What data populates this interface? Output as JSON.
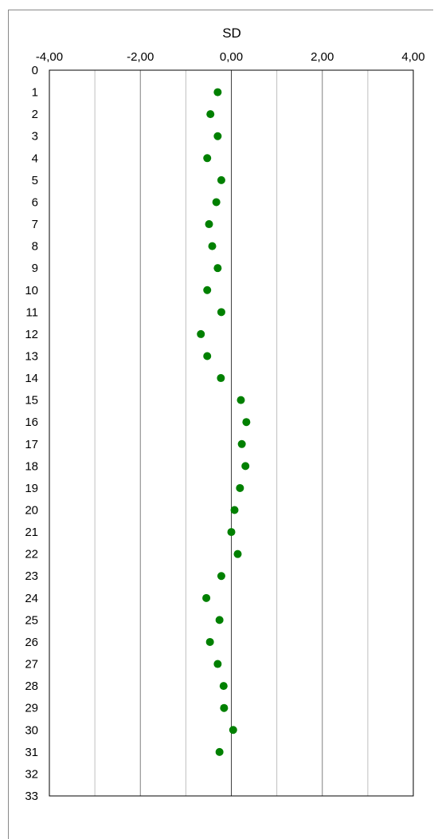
{
  "chart_data": {
    "type": "scatter",
    "title": "SD",
    "xlabel": "",
    "ylabel": "",
    "xlim": [
      -4,
      4
    ],
    "ylim": [
      0,
      33
    ],
    "x_axis_position": "top",
    "y_axis_inverted": true,
    "grid": "vertical",
    "x_ticks": [
      "-4,00",
      "-2,00",
      "0,00",
      "2,00",
      "4,00"
    ],
    "y_ticks": [
      "0",
      "1",
      "2",
      "3",
      "4",
      "5",
      "6",
      "7",
      "8",
      "9",
      "10",
      "11",
      "12",
      "13",
      "14",
      "15",
      "16",
      "17",
      "18",
      "19",
      "20",
      "21",
      "22",
      "23",
      "24",
      "25",
      "26",
      "27",
      "28",
      "29",
      "30",
      "31",
      "32",
      "33"
    ],
    "marker_color": "#008000",
    "points": [
      {
        "y": 1,
        "x": -0.3
      },
      {
        "y": 2,
        "x": -0.46
      },
      {
        "y": 3,
        "x": -0.3
      },
      {
        "y": 4,
        "x": -0.53
      },
      {
        "y": 5,
        "x": -0.22
      },
      {
        "y": 6,
        "x": -0.33
      },
      {
        "y": 7,
        "x": -0.49
      },
      {
        "y": 8,
        "x": -0.42
      },
      {
        "y": 9,
        "x": -0.3
      },
      {
        "y": 10,
        "x": -0.53
      },
      {
        "y": 11,
        "x": -0.22
      },
      {
        "y": 12,
        "x": -0.67
      },
      {
        "y": 13,
        "x": -0.53
      },
      {
        "y": 14,
        "x": -0.23
      },
      {
        "y": 15,
        "x": 0.21
      },
      {
        "y": 16,
        "x": 0.33
      },
      {
        "y": 17,
        "x": 0.23
      },
      {
        "y": 18,
        "x": 0.31
      },
      {
        "y": 19,
        "x": 0.19
      },
      {
        "y": 20,
        "x": 0.07
      },
      {
        "y": 21,
        "x": 0.0
      },
      {
        "y": 22,
        "x": 0.14
      },
      {
        "y": 23,
        "x": -0.22
      },
      {
        "y": 24,
        "x": -0.55
      },
      {
        "y": 25,
        "x": -0.26
      },
      {
        "y": 26,
        "x": -0.47
      },
      {
        "y": 27,
        "x": -0.3
      },
      {
        "y": 28,
        "x": -0.17
      },
      {
        "y": 29,
        "x": -0.16
      },
      {
        "y": 30,
        "x": 0.04
      },
      {
        "y": 31,
        "x": -0.26
      }
    ]
  }
}
